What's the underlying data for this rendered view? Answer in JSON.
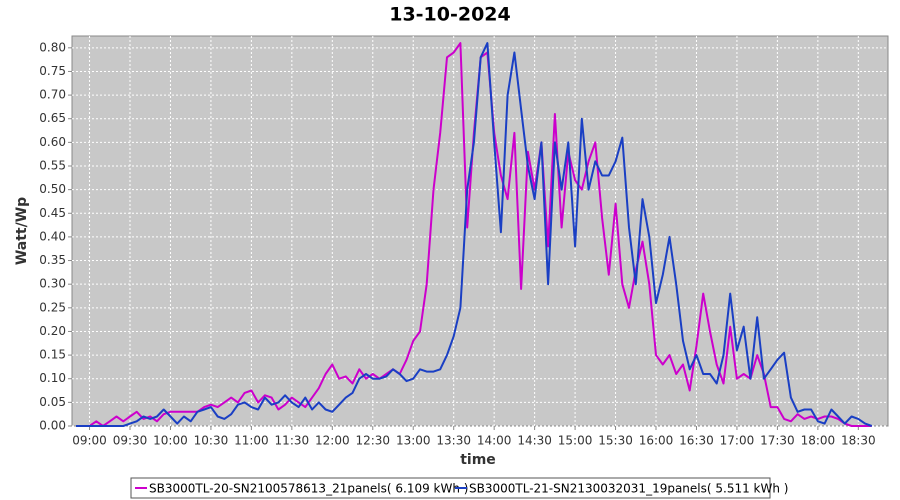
{
  "chart_data": {
    "type": "line",
    "title": "13-10-2024",
    "xlabel": "time",
    "ylabel": "Watt/Wp",
    "x": [
      "08:50",
      "08:55",
      "09:00",
      "09:05",
      "09:10",
      "09:15",
      "09:20",
      "09:25",
      "09:30",
      "09:35",
      "09:40",
      "09:45",
      "09:50",
      "09:55",
      "10:00",
      "10:05",
      "10:10",
      "10:15",
      "10:20",
      "10:25",
      "10:30",
      "10:35",
      "10:40",
      "10:45",
      "10:50",
      "10:55",
      "11:00",
      "11:05",
      "11:10",
      "11:15",
      "11:20",
      "11:25",
      "11:30",
      "11:35",
      "11:40",
      "11:45",
      "11:50",
      "11:55",
      "12:00",
      "12:05",
      "12:10",
      "12:15",
      "12:20",
      "12:25",
      "12:30",
      "12:35",
      "12:40",
      "12:45",
      "12:50",
      "12:55",
      "13:00",
      "13:05",
      "13:10",
      "13:15",
      "13:20",
      "13:25",
      "13:30",
      "13:35",
      "13:40",
      "13:45",
      "13:50",
      "13:55",
      "14:00",
      "14:05",
      "14:10",
      "14:15",
      "14:20",
      "14:25",
      "14:30",
      "14:35",
      "14:40",
      "14:45",
      "14:50",
      "14:55",
      "15:00",
      "15:05",
      "15:10",
      "15:15",
      "15:20",
      "15:25",
      "15:30",
      "15:35",
      "15:40",
      "15:45",
      "15:50",
      "15:55",
      "16:00",
      "16:05",
      "16:10",
      "16:15",
      "16:20",
      "16:25",
      "16:30",
      "16:35",
      "16:40",
      "16:45",
      "16:50",
      "16:55",
      "17:00",
      "17:05",
      "17:10",
      "17:15",
      "17:20",
      "17:25",
      "17:30",
      "17:35",
      "17:40",
      "17:45",
      "17:50",
      "17:55",
      "18:00",
      "18:05",
      "18:10",
      "18:15",
      "18:20",
      "18:25",
      "18:30",
      "18:35",
      "18:40"
    ],
    "series": [
      {
        "name": "SB3000TL-20-SN2100578613_21panels( 6.109 kWh )",
        "color": "#cc00cc",
        "values": [
          0,
          0,
          0,
          0.01,
          0,
          0.01,
          0.02,
          0.01,
          0.02,
          0.03,
          0.015,
          0.02,
          0.01,
          0.025,
          0.03,
          0.03,
          0.03,
          0.03,
          0.03,
          0.04,
          0.045,
          0.04,
          0.05,
          0.06,
          0.05,
          0.07,
          0.075,
          0.05,
          0.065,
          0.06,
          0.035,
          0.045,
          0.06,
          0.05,
          0.04,
          0.06,
          0.08,
          0.11,
          0.13,
          0.1,
          0.105,
          0.09,
          0.12,
          0.1,
          0.11,
          0.1,
          0.11,
          0.12,
          0.11,
          0.14,
          0.18,
          0.2,
          0.3,
          0.5,
          0.62,
          0.78,
          0.79,
          0.81,
          0.42,
          0.62,
          0.78,
          0.79,
          0.62,
          0.53,
          0.48,
          0.62,
          0.29,
          0.58,
          0.5,
          0.6,
          0.38,
          0.66,
          0.42,
          0.58,
          0.52,
          0.5,
          0.56,
          0.6,
          0.44,
          0.32,
          0.47,
          0.3,
          0.25,
          0.33,
          0.39,
          0.3,
          0.15,
          0.13,
          0.15,
          0.11,
          0.13,
          0.075,
          0.17,
          0.28,
          0.2,
          0.13,
          0.09,
          0.21,
          0.1,
          0.11,
          0.1,
          0.15,
          0.11,
          0.04,
          0.04,
          0.015,
          0.01,
          0.025,
          0.015,
          0.02,
          0.015,
          0.02,
          0.02,
          0.015,
          0.005,
          0,
          0,
          0,
          0
        ]
      },
      {
        "name": "SB3000TL-21-SN2130032031_19panels( 5.511 kWh )",
        "color": "#1a3fc4",
        "values": [
          0,
          0,
          0,
          0,
          0,
          0,
          0,
          0,
          0.005,
          0.01,
          0.02,
          0.015,
          0.02,
          0.035,
          0.02,
          0.005,
          0.02,
          0.01,
          0.03,
          0.035,
          0.04,
          0.02,
          0.015,
          0.025,
          0.045,
          0.05,
          0.04,
          0.035,
          0.06,
          0.045,
          0.05,
          0.065,
          0.05,
          0.04,
          0.06,
          0.035,
          0.05,
          0.035,
          0.03,
          0.045,
          0.06,
          0.07,
          0.1,
          0.11,
          0.1,
          0.1,
          0.105,
          0.12,
          0.11,
          0.095,
          0.1,
          0.12,
          0.115,
          0.115,
          0.12,
          0.15,
          0.19,
          0.25,
          0.5,
          0.6,
          0.78,
          0.81,
          0.6,
          0.41,
          0.7,
          0.79,
          0.67,
          0.55,
          0.48,
          0.6,
          0.3,
          0.6,
          0.5,
          0.6,
          0.38,
          0.65,
          0.5,
          0.56,
          0.53,
          0.53,
          0.56,
          0.61,
          0.42,
          0.3,
          0.48,
          0.4,
          0.26,
          0.32,
          0.4,
          0.3,
          0.18,
          0.12,
          0.15,
          0.11,
          0.11,
          0.09,
          0.15,
          0.28,
          0.16,
          0.21,
          0.1,
          0.23,
          0.1,
          0.12,
          0.14,
          0.155,
          0.06,
          0.03,
          0.035,
          0.035,
          0.01,
          0.005,
          0.035,
          0.02,
          0.005,
          0.02,
          0.015,
          0.005,
          0
        ]
      }
    ],
    "xlim": [
      "08:47",
      "18:52"
    ],
    "xticks": [
      "09:00",
      "09:30",
      "10:00",
      "10:30",
      "11:00",
      "11:30",
      "12:00",
      "12:30",
      "13:00",
      "13:30",
      "14:00",
      "14:30",
      "15:00",
      "15:30",
      "16:00",
      "16:30",
      "17:00",
      "17:30",
      "18:00",
      "18:30"
    ],
    "ylim": [
      0,
      0.825
    ],
    "yticks": [
      {
        "value": 0,
        "label": "0.00"
      },
      {
        "value": 0.05,
        "label": "0.05"
      },
      {
        "value": 0.1,
        "label": "0.10"
      },
      {
        "value": 0.15,
        "label": "0.15"
      },
      {
        "value": 0.2,
        "label": "0.20"
      },
      {
        "value": 0.25,
        "label": "0.25"
      },
      {
        "value": 0.3,
        "label": "0.30"
      },
      {
        "value": 0.35,
        "label": "0.35"
      },
      {
        "value": 0.4,
        "label": "0.40"
      },
      {
        "value": 0.45,
        "label": "0.45"
      },
      {
        "value": 0.5,
        "label": "0.50"
      },
      {
        "value": 0.55,
        "label": "0.55"
      },
      {
        "value": 0.6,
        "label": "0.60"
      },
      {
        "value": 0.65,
        "label": "0.65"
      },
      {
        "value": 0.7,
        "label": "0.70"
      },
      {
        "value": 0.75,
        "label": "0.75"
      },
      {
        "value": 0.8,
        "label": "0.80"
      }
    ],
    "grid": true,
    "legend": "bottom"
  }
}
